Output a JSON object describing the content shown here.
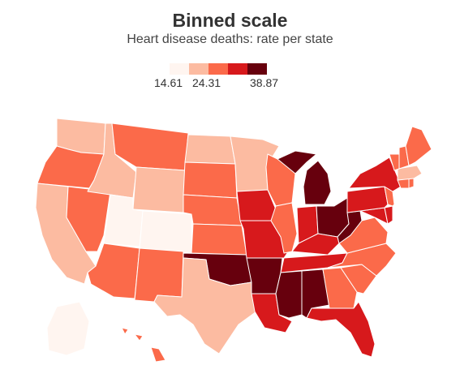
{
  "title": "Binned scale",
  "subtitle": "Heart disease deaths: rate per state",
  "legend": {
    "bins": [
      "#fff5f0",
      "#fcbba1",
      "#fb6a4a",
      "#d7191c",
      "#67000d"
    ],
    "labels": [
      "14.61",
      "24.31",
      "38.87"
    ]
  },
  "map_data": [
    {
      "state": "WA",
      "bin": 1
    },
    {
      "state": "OR",
      "bin": 2
    },
    {
      "state": "CA",
      "bin": 1
    },
    {
      "state": "NV",
      "bin": 2
    },
    {
      "state": "ID",
      "bin": 1
    },
    {
      "state": "MT",
      "bin": 2
    },
    {
      "state": "WY",
      "bin": 1
    },
    {
      "state": "UT",
      "bin": 0
    },
    {
      "state": "CO",
      "bin": 0
    },
    {
      "state": "AZ",
      "bin": 2
    },
    {
      "state": "NM",
      "bin": 2
    },
    {
      "state": "ND",
      "bin": 1
    },
    {
      "state": "SD",
      "bin": 2
    },
    {
      "state": "NE",
      "bin": 2
    },
    {
      "state": "KS",
      "bin": 2
    },
    {
      "state": "OK",
      "bin": 4
    },
    {
      "state": "TX",
      "bin": 1
    },
    {
      "state": "MN",
      "bin": 1
    },
    {
      "state": "IA",
      "bin": 3
    },
    {
      "state": "MO",
      "bin": 3
    },
    {
      "state": "AR",
      "bin": 4
    },
    {
      "state": "LA",
      "bin": 3
    },
    {
      "state": "WI",
      "bin": 2
    },
    {
      "state": "IL",
      "bin": 2
    },
    {
      "state": "MI",
      "bin": 4
    },
    {
      "state": "IN",
      "bin": 3
    },
    {
      "state": "OH",
      "bin": 4
    },
    {
      "state": "KY",
      "bin": 3
    },
    {
      "state": "TN",
      "bin": 3
    },
    {
      "state": "MS",
      "bin": 4
    },
    {
      "state": "AL",
      "bin": 4
    },
    {
      "state": "GA",
      "bin": 2
    },
    {
      "state": "FL",
      "bin": 3
    },
    {
      "state": "SC",
      "bin": 2
    },
    {
      "state": "NC",
      "bin": 2
    },
    {
      "state": "VA",
      "bin": 2
    },
    {
      "state": "WV",
      "bin": 4
    },
    {
      "state": "MD",
      "bin": 3
    },
    {
      "state": "DE",
      "bin": 3
    },
    {
      "state": "PA",
      "bin": 3
    },
    {
      "state": "NJ",
      "bin": 2
    },
    {
      "state": "NY",
      "bin": 3
    },
    {
      "state": "CT",
      "bin": 2
    },
    {
      "state": "RI",
      "bin": 2
    },
    {
      "state": "MA",
      "bin": 1
    },
    {
      "state": "VT",
      "bin": 2
    },
    {
      "state": "NH",
      "bin": 2
    },
    {
      "state": "ME",
      "bin": 2
    },
    {
      "state": "AK",
      "bin": 0
    },
    {
      "state": "HI",
      "bin": 2
    }
  ]
}
